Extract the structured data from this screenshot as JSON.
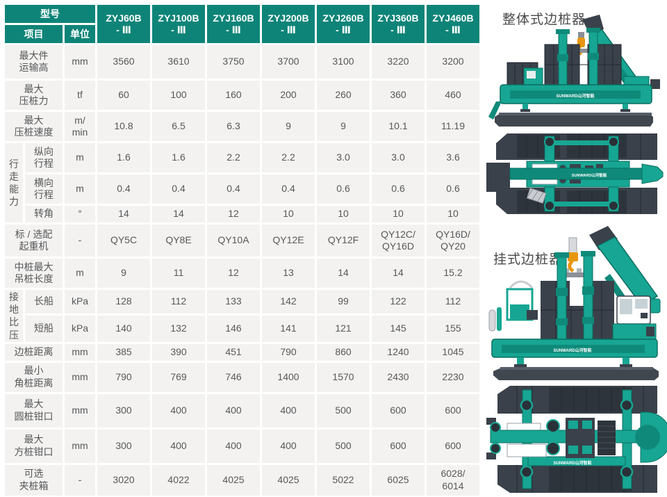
{
  "colors": {
    "header_teal": "#0E8478",
    "cell_background": "#F3F2F0",
    "cell_text": "#57585A",
    "machine_teal": "#17A693",
    "machine_dark_gray": "#3A414A",
    "hook_orange": "#E8960F"
  },
  "table": {
    "header": {
      "model_label": "型号",
      "item_label": "项目",
      "unit_label": "单位",
      "models": [
        "ZYJ60B\n- Ⅲ",
        "ZYJ100B\n- Ⅲ",
        "ZYJ160B\n- Ⅲ",
        "ZYJ200B\n- Ⅲ",
        "ZYJ260B\n- Ⅲ",
        "ZYJ360B\n- Ⅲ",
        "ZYJ460B\n- Ⅲ"
      ]
    },
    "rows": [
      {
        "label": "最大件\n运输高",
        "unit": "mm",
        "values": [
          "3560",
          "3610",
          "3750",
          "3700",
          "3100",
          "3220",
          "3200"
        ]
      },
      {
        "label": "最大\n压桩力",
        "unit": "tf",
        "values": [
          "60",
          "100",
          "160",
          "200",
          "260",
          "360",
          "460"
        ]
      },
      {
        "label": "最大\n压桩速度",
        "unit": "m/\nmin",
        "values": [
          "10.8",
          "6.5",
          "6.3",
          "9",
          "9",
          "10.1",
          "11.19"
        ]
      },
      {
        "group": {
          "label": "行\n走\n能\n力",
          "span": 3
        },
        "label": "纵向\n行程",
        "unit": "m",
        "values": [
          "1.6",
          "1.6",
          "2.2",
          "2.2",
          "3.0",
          "3.0",
          "3.6"
        ]
      },
      {
        "label": "横向\n行程",
        "unit": "m",
        "values": [
          "0.4",
          "0.4",
          "0.4",
          "0.4",
          "0.6",
          "0.6",
          "0.6"
        ]
      },
      {
        "label": "转角",
        "unit": "°",
        "values": [
          "14",
          "14",
          "12",
          "10",
          "10",
          "10",
          "10"
        ]
      },
      {
        "label": "标 / 选配\n起重机",
        "unit": "-",
        "values": [
          "QY5C",
          "QY8E",
          "QY10A",
          "QY12E",
          "QY12F",
          "QY12C/\nQY16D",
          "QY16D/\nQY20"
        ]
      },
      {
        "label": "中桩最大\n吊桩长度",
        "unit": "m",
        "values": [
          "9",
          "11",
          "12",
          "13",
          "14",
          "14",
          "15.2"
        ]
      },
      {
        "group": {
          "label": "接\n地\n比\n压",
          "span": 2
        },
        "label": "长船",
        "unit": "kPa",
        "values": [
          "128",
          "112",
          "133",
          "142",
          "99",
          "122",
          "112"
        ]
      },
      {
        "label": "短船",
        "unit": "kPa",
        "values": [
          "140",
          "132",
          "146",
          "141",
          "121",
          "145",
          "155"
        ]
      },
      {
        "label": "边桩距离",
        "unit": "mm",
        "values": [
          "385",
          "390",
          "451",
          "790",
          "860",
          "1240",
          "1045"
        ]
      },
      {
        "label": "最小\n角桩距离",
        "unit": "mm",
        "values": [
          "790",
          "769",
          "746",
          "1400",
          "1570",
          "2430",
          "2230"
        ]
      },
      {
        "label": "最大\n圆桩钳口",
        "unit": "mm",
        "values": [
          "300",
          "400",
          "400",
          "400",
          "500",
          "600",
          "600"
        ]
      },
      {
        "label": "最大\n方桩钳口",
        "unit": "mm",
        "values": [
          "300",
          "400",
          "400",
          "400",
          "500",
          "600",
          "600"
        ]
      },
      {
        "label": "可选\n夹桩箱",
        "unit": "-",
        "values": [
          "3020",
          "4022",
          "4025",
          "4025",
          "5022",
          "6025",
          "6028/\n6014"
        ]
      }
    ]
  },
  "illustrations": {
    "integral_label": "整体式边桩器",
    "hanging_label": "挂式边桩器",
    "brand": "SUNWARD山河智能"
  }
}
